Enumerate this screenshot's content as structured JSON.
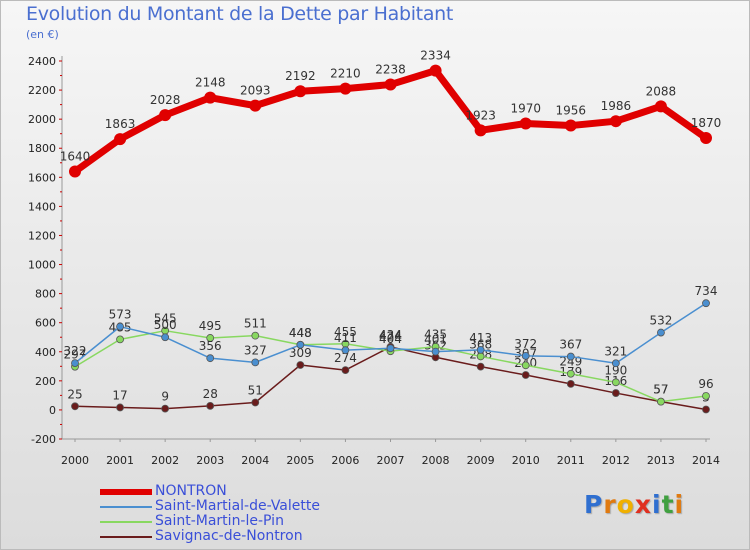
{
  "chart_data": {
    "type": "line",
    "title": "Evolution du Montant de la Dette par Habitant",
    "unit_label": "(en €)",
    "x": [
      "2000",
      "2001",
      "2002",
      "2003",
      "2004",
      "2005",
      "2006",
      "2007",
      "2008",
      "2009",
      "2010",
      "2011",
      "2012",
      "2013",
      "2014"
    ],
    "ylim": [
      -200,
      2400
    ],
    "yticks": [
      -200,
      0,
      200,
      400,
      600,
      800,
      1000,
      1200,
      1400,
      1600,
      1800,
      2000,
      2200,
      2400
    ],
    "grid": false,
    "legend_position": "bottom-left",
    "series": [
      {
        "name": "NONTRON",
        "color": "#e00000",
        "values": [
          1640,
          1863,
          2028,
          2148,
          2093,
          2192,
          2210,
          2238,
          2334,
          1923,
          1970,
          1956,
          1986,
          2088,
          1870
        ]
      },
      {
        "name": "Saint-Martial-de-Valette",
        "color": "#4a8fd0",
        "values": [
          322,
          573,
          500,
          356,
          327,
          448,
          411,
          424,
          401,
          413,
          372,
          367,
          321,
          532,
          734
        ]
      },
      {
        "name": "Saint-Martin-le-Pin",
        "color": "#88d860",
        "values": [
          297,
          485,
          545,
          495,
          511,
          448,
          455,
          404,
          435,
          368,
          307,
          249,
          190,
          57,
          96
        ]
      },
      {
        "name": "Savignac-de-Nontron",
        "color": "#6a1c1c",
        "values": [
          25,
          17,
          9,
          28,
          51,
          309,
          274,
          434,
          362,
          298,
          240,
          179,
          116,
          57,
          3
        ]
      }
    ]
  },
  "legend_items": [
    {
      "label": "NONTRON",
      "color": "#e00000",
      "thickness": 6
    },
    {
      "label": "Saint-Martial-de-Valette",
      "color": "#4a8fd0",
      "thickness": 2
    },
    {
      "label": "Saint-Martin-le-Pin",
      "color": "#88d860",
      "thickness": 2
    },
    {
      "label": "Savignac-de-Nontron",
      "color": "#6a1c1c",
      "thickness": 2
    }
  ],
  "logo": {
    "letters": [
      "P",
      "r",
      "o",
      "x",
      "i",
      "t",
      "i"
    ],
    "colors": [
      "#2f6fd0",
      "#e07a10",
      "#f0b000",
      "#e03020",
      "#2f6fd0",
      "#40a040",
      "#e07a10"
    ]
  }
}
